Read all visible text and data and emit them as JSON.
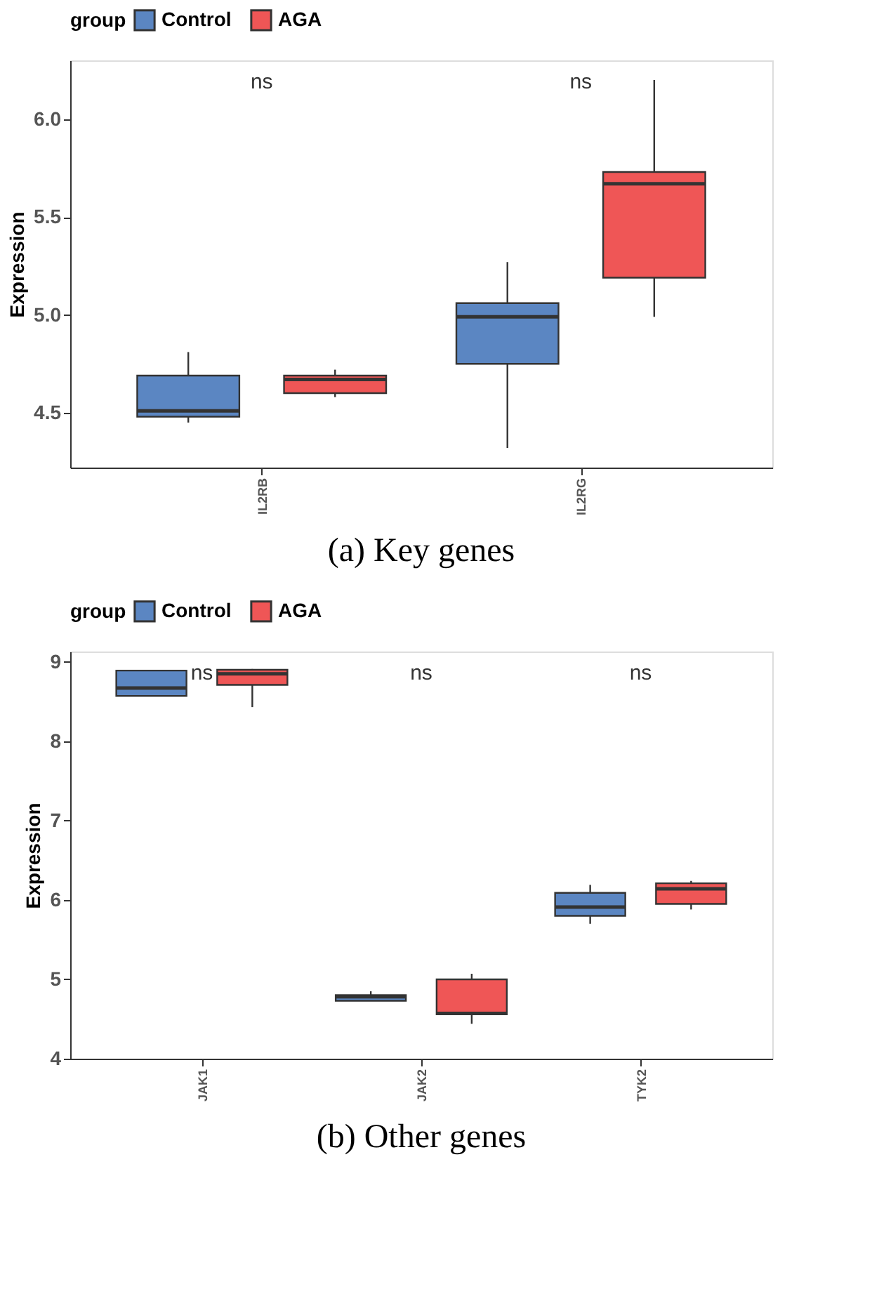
{
  "chart_data": [
    {
      "type": "box",
      "title": "(a) Key genes",
      "ylabel": "Expression",
      "legend_title": "group",
      "legend": "top",
      "grid": false,
      "categories": [
        "IL2RB",
        "IL2RG"
      ],
      "ylim": [
        4.22,
        6.3
      ],
      "yticks": [
        4.5,
        {
          "value": 5,
          "label": "5.0"
        },
        5.5,
        {
          "value": 6,
          "label": "6.0"
        }
      ],
      "series": [
        {
          "name": "Control",
          "color": "#5b86c2",
          "boxes": [
            {
              "low": 4.45,
              "q1": 4.48,
              "median": 4.51,
              "q3": 4.69,
              "high": 4.81
            },
            {
              "low": 4.32,
              "q1": 4.75,
              "median": 4.99,
              "q3": 5.06,
              "high": 5.27
            }
          ]
        },
        {
          "name": "AGA",
          "color": "#ef5656",
          "boxes": [
            {
              "low": 4.58,
              "q1": 4.6,
              "median": 4.67,
              "q3": 4.69,
              "high": 4.72
            },
            {
              "low": 4.99,
              "q1": 5.19,
              "median": 5.67,
              "q3": 5.73,
              "high": 6.2
            }
          ]
        }
      ],
      "annotations": [
        "ns",
        "ns"
      ]
    },
    {
      "type": "box",
      "title": "(b) Other genes",
      "ylabel": "Expression",
      "legend_title": "group",
      "legend": "top",
      "grid": false,
      "categories": [
        "JAK1",
        "JAK2",
        "TYK2"
      ],
      "ylim": [
        4,
        9.13
      ],
      "yticks": [
        4,
        5,
        6,
        7,
        8,
        9
      ],
      "series": [
        {
          "name": "Control",
          "color": "#5b86c2",
          "boxes": [
            {
              "low": 8.57,
              "q1": 8.57,
              "median": 8.67,
              "q3": 8.89,
              "high": 8.89
            },
            {
              "low": 4.73,
              "q1": 4.73,
              "median": 4.78,
              "q3": 4.8,
              "high": 4.85
            },
            {
              "low": 5.7,
              "q1": 5.8,
              "median": 5.91,
              "q3": 6.09,
              "high": 6.19
            }
          ]
        },
        {
          "name": "AGA",
          "color": "#ef5656",
          "boxes": [
            {
              "low": 8.43,
              "q1": 8.71,
              "median": 8.85,
              "q3": 8.9,
              "high": 8.91
            },
            {
              "low": 4.44,
              "q1": 4.56,
              "median": 4.57,
              "q3": 5.0,
              "high": 5.07
            },
            {
              "low": 5.88,
              "q1": 5.95,
              "median": 6.14,
              "q3": 6.21,
              "high": 6.24
            }
          ]
        }
      ],
      "annotations": [
        "ns",
        "ns",
        "ns"
      ]
    }
  ]
}
